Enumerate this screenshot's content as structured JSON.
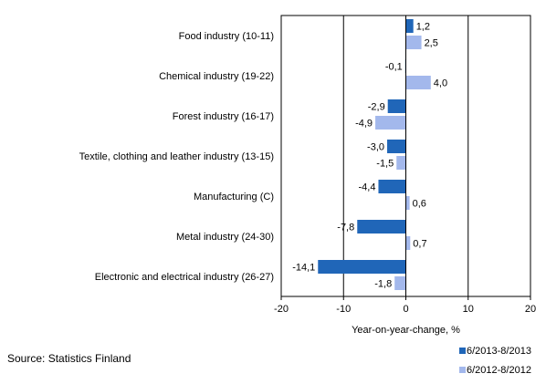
{
  "chart_data": {
    "type": "bar",
    "orientation": "horizontal",
    "categories": [
      "Food industry (10-11)",
      "Chemical industry (19-22)",
      "Forest industry (16-17)",
      "Textile, clothing and leather industry (13-15)",
      "Manufacturing (C)",
      "Metal industry (24-30)",
      "Electronic and electrical industry (26-27)"
    ],
    "series": [
      {
        "name": "6/2013-8/2013",
        "color": "#2066b8",
        "values": [
          1.2,
          -0.1,
          -2.9,
          -3.0,
          -4.4,
          -7.8,
          -14.1
        ],
        "labels": [
          "1,2",
          "-0,1",
          "-2,9",
          "-3,0",
          "-4,4",
          "-7,8",
          "-14,1"
        ]
      },
      {
        "name": "6/2012-8/2012",
        "color": "#a3b8ec",
        "values": [
          2.5,
          4.0,
          -4.9,
          -1.5,
          0.6,
          0.7,
          -1.8
        ],
        "labels": [
          "2,5",
          "4,0",
          "-4,9",
          "-1,5",
          "0,6",
          "0,7",
          "-1,8"
        ]
      }
    ],
    "xlabel": "Year-on-year-change, %",
    "xlim": [
      -20,
      20
    ],
    "xticks": [
      -20,
      -10,
      0,
      10,
      20
    ],
    "xtick_labels": [
      "-20",
      "-10",
      "0",
      "10",
      "20"
    ],
    "grid": "vertical",
    "legend": "bottom-right"
  },
  "source": "Source: Statistics Finland"
}
